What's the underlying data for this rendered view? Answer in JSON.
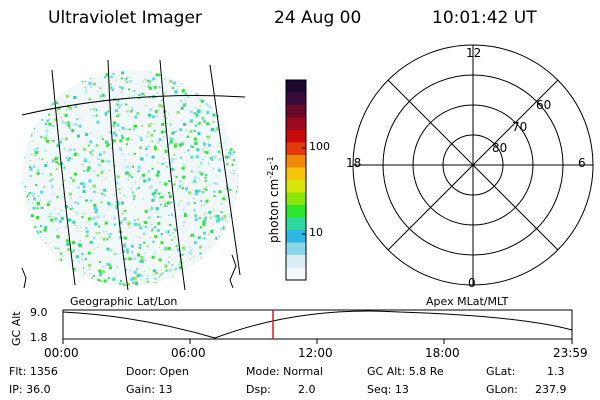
{
  "header": {
    "instrument": "Ultraviolet Imager",
    "date": "24 Aug 00",
    "time": "10:01:42 UT"
  },
  "colorbar": {
    "label": "photon cm",
    "label_exp1": "-2",
    "label_mid": "s",
    "label_exp2": "-1",
    "ticks": [
      "100",
      "10"
    ],
    "colors": [
      "#1a0a2e",
      "#3a0a3a",
      "#6a0a2a",
      "#9a0a1a",
      "#c80a0a",
      "#e43a0a",
      "#f08a0a",
      "#f4c40a",
      "#d8e60a",
      "#8ae60a",
      "#2ee62e",
      "#2ed6a0",
      "#2eb6e6",
      "#8ad6e6",
      "#d6eef4",
      "#f4f8fa"
    ]
  },
  "polar": {
    "mlt_labels": {
      "top": "12",
      "left": "18",
      "right": "6",
      "bottom": "0"
    },
    "lat_labels": [
      "60",
      "70",
      "80"
    ]
  },
  "timeline": {
    "left_label": "Geographic Lat/Lon",
    "right_label": "Apex MLat/MLT",
    "axis_label": "GC Alt",
    "y_max": "9.0",
    "y_min": "1.8",
    "x_ticks": [
      "00:00",
      "06:00",
      "12:00",
      "18:00",
      "23:59"
    ],
    "marker_color": "#d02020"
  },
  "info": {
    "flt": "Flt: 1356",
    "ip": "IP: 36.0",
    "door": "Door: Open",
    "gain": "Gain: 13",
    "mode": "Mode: Normal",
    "dsp_label": "Dsp:",
    "dsp_value": "2.0",
    "gc_alt": "GC Alt: 5.8 Re",
    "seq": "Seq: 13",
    "glat_label": "GLat:",
    "glat_value": "1.3",
    "glon_label": "GLon:",
    "glon_value": "237.9"
  }
}
